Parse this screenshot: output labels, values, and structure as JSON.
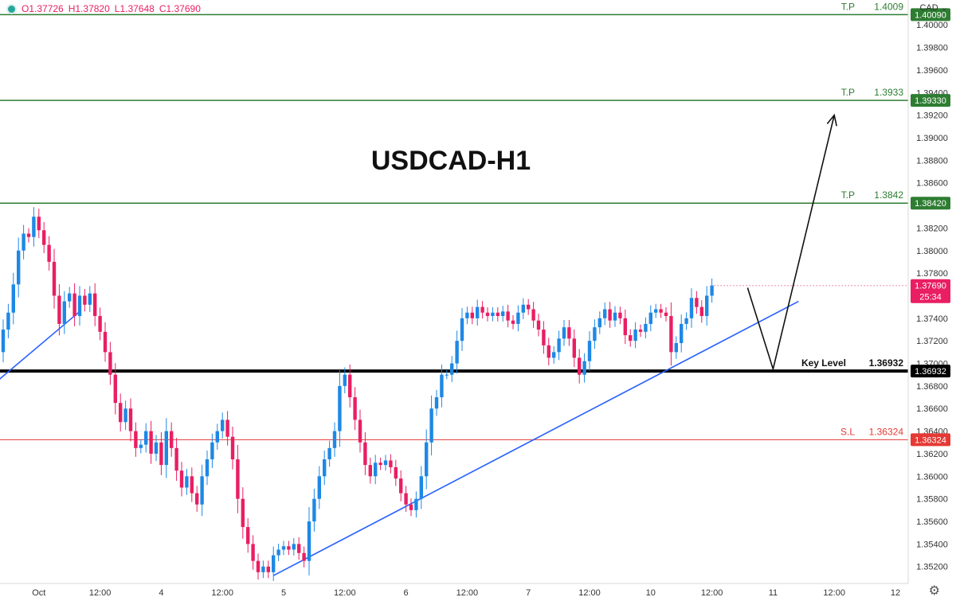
{
  "header": {
    "ohlc": {
      "open": "O1.37726",
      "high": "H1.37820",
      "low": "L1.37648",
      "close": "C1.37690"
    },
    "currency": "CAD",
    "currency_chevron": "⌄",
    "settings_icon": "gear-icon"
  },
  "colors": {
    "up": "#1e88e5",
    "down": "#e91e63",
    "tp": "#2e7d32",
    "sl": "#e53935",
    "key": "#000000",
    "trend": "#2962ff"
  },
  "chart_data": {
    "type": "candlestick",
    "title": "USDCAD-H1",
    "ylim": [
      1.3505,
      1.4022
    ],
    "y_ticks": [
      "1.40000",
      "1.39800",
      "1.39600",
      "1.39400",
      "1.39200",
      "1.39000",
      "1.38800",
      "1.38600",
      "1.38200",
      "1.38000",
      "1.37800",
      "1.37400",
      "1.37200",
      "1.37000",
      "1.36800",
      "1.36600",
      "1.36400",
      "1.36200",
      "1.36000",
      "1.35800",
      "1.35600",
      "1.35400",
      "1.35200"
    ],
    "x_ticks": [
      {
        "label": "Oct",
        "bar": 7
      },
      {
        "label": "12:00",
        "bar": 19
      },
      {
        "label": "4",
        "bar": 31
      },
      {
        "label": "12:00",
        "bar": 43
      },
      {
        "label": "5",
        "bar": 55
      },
      {
        "label": "12:00",
        "bar": 67
      },
      {
        "label": "6",
        "bar": 79
      },
      {
        "label": "12:00",
        "bar": 91
      },
      {
        "label": "7",
        "bar": 103
      },
      {
        "label": "12:00",
        "bar": 115
      },
      {
        "label": "10",
        "bar": 127
      },
      {
        "label": "12:00",
        "bar": 139
      },
      {
        "label": "11",
        "bar": 151
      },
      {
        "label": "12:00",
        "bar": 163
      },
      {
        "label": "12",
        "bar": 175
      }
    ],
    "closes": [
      1.373,
      1.3745,
      1.377,
      1.38,
      1.3815,
      1.3812,
      1.383,
      1.3818,
      1.3805,
      1.379,
      1.376,
      1.3735,
      1.3755,
      1.3762,
      1.3742,
      1.376,
      1.3752,
      1.3762,
      1.3742,
      1.3728,
      1.371,
      1.369,
      1.3665,
      1.3648,
      1.366,
      1.364,
      1.3625,
      1.3628,
      1.364,
      1.362,
      1.363,
      1.361,
      1.364,
      1.3625,
      1.3605,
      1.359,
      1.36,
      1.3585,
      1.3575,
      1.36,
      1.3615,
      1.363,
      1.364,
      1.365,
      1.3635,
      1.3615,
      1.358,
      1.3555,
      1.354,
      1.3525,
      1.3515,
      1.352,
      1.3515,
      1.353,
      1.3535,
      1.3538,
      1.3535,
      1.354,
      1.3532,
      1.3525,
      1.356,
      1.358,
      1.36,
      1.3615,
      1.3625,
      1.364,
      1.368,
      1.369,
      1.367,
      1.365,
      1.363,
      1.361,
      1.36,
      1.3612,
      1.361,
      1.3614,
      1.3608,
      1.3598,
      1.3585,
      1.3575,
      1.357,
      1.358,
      1.36,
      1.363,
      1.366,
      1.367,
      1.369,
      1.369,
      1.37,
      1.372,
      1.374,
      1.3745,
      1.374,
      1.375,
      1.3745,
      1.3742,
      1.3745,
      1.3742,
      1.3746,
      1.3738,
      1.3735,
      1.3745,
      1.3752,
      1.3748,
      1.3738,
      1.373,
      1.3716,
      1.3705,
      1.371,
      1.3722,
      1.3732,
      1.3722,
      1.3705,
      1.369,
      1.3702,
      1.372,
      1.3732,
      1.374,
      1.3748,
      1.3738,
      1.3745,
      1.374,
      1.3725,
      1.372,
      1.373,
      1.3728,
      1.3735,
      1.3745,
      1.3748,
      1.3745,
      1.3742,
      1.371,
      1.3718,
      1.3735,
      1.374,
      1.3758,
      1.375,
      1.3742,
      1.376,
      1.3769
    ],
    "levels": [
      {
        "name": "T.P",
        "value": 1.4009,
        "label_text": "T.P",
        "value_text": "1.4009",
        "tag_text": "1.40090",
        "kind": "tp"
      },
      {
        "name": "T.P",
        "value": 1.3933,
        "label_text": "T.P",
        "value_text": "1.3933",
        "tag_text": "1.39330",
        "kind": "tp"
      },
      {
        "name": "T.P",
        "value": 1.3842,
        "label_text": "T.P",
        "value_text": "1.3842",
        "tag_text": "1.38420",
        "kind": "tp"
      },
      {
        "name": "Key Level",
        "value": 1.36932,
        "label_text": "Key Level",
        "value_text": "1.36932",
        "tag_text": "1.36932",
        "kind": "key"
      },
      {
        "name": "S.L",
        "value": 1.36324,
        "label_text": "S.L",
        "value_text": "1.36324",
        "tag_text": "1.36324",
        "kind": "sl"
      }
    ],
    "current_price": {
      "value": 1.3769,
      "tag_text": "1.37690",
      "countdown": "25:34"
    },
    "trendlines": [
      {
        "from": {
          "bar": -1,
          "price": 1.3685
        },
        "to": {
          "bar": 15,
          "price": 1.3746
        }
      },
      {
        "from": {
          "bar": 53,
          "price": 1.3512
        },
        "to": {
          "bar": 156,
          "price": 1.3755
        }
      }
    ],
    "projection": [
      {
        "bar": 146,
        "price": 1.3767
      },
      {
        "bar": 151,
        "price": 1.3695
      },
      {
        "bar": 163,
        "price": 1.392
      }
    ]
  }
}
